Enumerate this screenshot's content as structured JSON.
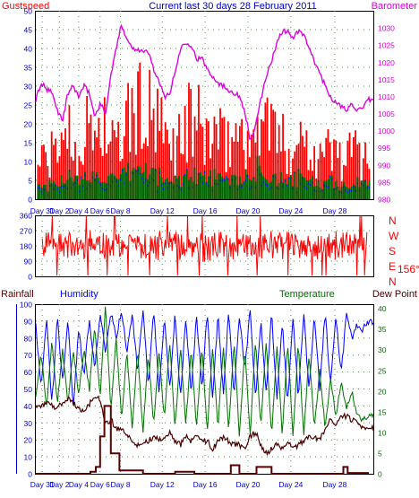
{
  "colors": {
    "gust": "#ff0000",
    "wind_dark": "#006400",
    "wind_blue": "#0000ff",
    "baro": "#e000e0",
    "dir": "#ff0000",
    "rain": "#5a0000",
    "humidity": "#0000ff",
    "temperature": "#007000",
    "dewpoint": "#4a0000",
    "axis_blue": "#0000cc",
    "grid": "#5a8a5a"
  },
  "chart_data": [
    {
      "type": "bar",
      "title": "Current last 30 days 28 February 2011",
      "left_label": "Gustspeed",
      "right_label": "Barometer",
      "x_ticks": [
        "Day 31",
        "Day 2",
        "Day 4",
        "Day 6",
        "Day 8",
        "Day 12",
        "Day 16",
        "Day 20",
        "Day 24",
        "Day 28"
      ],
      "ylim_left": [
        0,
        50
      ],
      "yticks_left": [
        "0",
        "5",
        "10",
        "15",
        "20",
        "25",
        "30",
        "35",
        "40",
        "45",
        "50"
      ],
      "ylim_right": [
        980,
        1035
      ],
      "yticks_right": [
        "980",
        "985",
        "990",
        "995",
        "1000",
        "1005",
        "1010",
        "1015",
        "1020",
        "1025",
        "1030"
      ],
      "x_range_days": [
        -1,
        30.5
      ],
      "gust_peak_days": [
        0.2,
        1.0,
        1.8,
        2.5,
        3.4,
        4.0,
        4.6,
        5.3,
        5.9,
        6.6,
        7.2,
        8.4,
        9.6,
        10.8,
        11.6,
        12.4,
        13.6,
        14.8,
        15.8,
        16.6,
        17.5,
        18.4,
        19.2,
        19.7,
        20.3,
        21.3,
        22.4,
        23.5,
        24.5,
        25.5,
        26.6,
        27.5,
        28.6,
        29.4
      ],
      "gust_peak_values": [
        17,
        20,
        34,
        22,
        24,
        31,
        28,
        33,
        25,
        20,
        30,
        38,
        35,
        27,
        21,
        26,
        34,
        27,
        28,
        22,
        27,
        30,
        17,
        39,
        35,
        29,
        20,
        27,
        24,
        18,
        22,
        17,
        20,
        19
      ],
      "baro_days": [
        -1,
        -0.5,
        0,
        0.5,
        1,
        1.5,
        2,
        2.5,
        3,
        3.5,
        4,
        4.5,
        5,
        5.5,
        6,
        6.5,
        7,
        7.5,
        8,
        8.5,
        9,
        9.5,
        10,
        10.5,
        11,
        11.5,
        12,
        12.5,
        13,
        13.5,
        14,
        14.5,
        15,
        15.5,
        16,
        16.5,
        17,
        17.5,
        18,
        18.5,
        19,
        19.5,
        20,
        20.5,
        21,
        21.5,
        22,
        22.5,
        23,
        23.5,
        24,
        24.5,
        25,
        25.5,
        26,
        26.5,
        27,
        27.5,
        28,
        28.5,
        29,
        29.5,
        30
      ],
      "baro_values": [
        1009,
        1014,
        1012,
        1011,
        1006,
        1003,
        1011,
        1013,
        1010,
        1013,
        1011,
        1004,
        1008,
        1005,
        1016,
        1024,
        1031,
        1027,
        1024,
        1024,
        1023,
        1023,
        1018,
        1014,
        1010,
        1011,
        1017,
        1024,
        1026,
        1025,
        1021,
        1021,
        1018,
        1016,
        1014,
        1013,
        1012,
        1011,
        1010,
        1006,
        997,
        1001,
        1009,
        1016,
        1020,
        1026,
        1029,
        1029,
        1027,
        1029,
        1028,
        1024,
        1020,
        1017,
        1013,
        1010,
        1008,
        1007,
        1006,
        1008,
        1006,
        1006,
        1009
      ]
    },
    {
      "type": "line",
      "series": [
        {
          "name": "Wind direction"
        }
      ],
      "right_labels": [
        "N",
        "W",
        "S",
        "E",
        "N"
      ],
      "current_reading": "156°",
      "ylim": [
        0,
        360
      ],
      "yticks": [
        "0",
        "90",
        "180",
        "270",
        "360"
      ],
      "typical_range": [
        90,
        270
      ]
    },
    {
      "type": "line",
      "labels": [
        "Rainfall",
        "Humidity",
        "Temperature",
        "Dew Point"
      ],
      "x_ticks": [
        "Day 31",
        "Day 2",
        "Day 4",
        "Day 6",
        "Day 8",
        "Day 12",
        "Day 16",
        "Day 20",
        "Day 24",
        "Day 28"
      ],
      "ylim_left": [
        0,
        100
      ],
      "yticks_left": [
        "0",
        "10",
        "20",
        "30",
        "40",
        "50",
        "60",
        "70",
        "80",
        "90",
        "100"
      ],
      "ylim_right": [
        0,
        41
      ],
      "yticks_right": [
        "0",
        "5",
        "10",
        "15",
        "20",
        "25",
        "30",
        "35",
        "40"
      ],
      "humidity_days": [
        -1,
        -0.5,
        0,
        0.5,
        1,
        1.5,
        2,
        2.5,
        3,
        3.5,
        4,
        4.5,
        5,
        5.5,
        6,
        6.5,
        7,
        7.5,
        8,
        8.5,
        9,
        9.5,
        10,
        10.5,
        11,
        11.5,
        12,
        12.5,
        13,
        13.5,
        14,
        14.5,
        15,
        15.5,
        16,
        16.5,
        17,
        17.5,
        18,
        18.5,
        19,
        19.5,
        20,
        20.5,
        21,
        21.5,
        22,
        22.5,
        23,
        23.5,
        24,
        24.5,
        25,
        25.5,
        26,
        26.5,
        27,
        27.5,
        28,
        28.5,
        29,
        29.5,
        30
      ],
      "humidity_values": [
        88,
        50,
        94,
        40,
        92,
        55,
        90,
        40,
        85,
        58,
        92,
        62,
        95,
        70,
        96,
        80,
        97,
        72,
        95,
        60,
        96,
        52,
        97,
        48,
        93,
        50,
        94,
        45,
        92,
        47,
        95,
        50,
        96,
        44,
        94,
        46,
        96,
        45,
        94,
        60,
        97,
        45,
        90,
        47,
        95,
        44,
        90,
        42,
        92,
        45,
        95,
        48,
        94,
        50,
        96,
        52,
        93,
        58,
        95,
        80,
        88,
        85,
        90
      ],
      "temperature_days": [
        -1,
        -0.5,
        0,
        0.5,
        1,
        1.5,
        2,
        2.5,
        3,
        3.5,
        4,
        4.5,
        5,
        5.5,
        6,
        6.5,
        7,
        7.5,
        8,
        8.5,
        9,
        9.5,
        10,
        10.5,
        11,
        11.5,
        12,
        12.5,
        13,
        13.5,
        14,
        14.5,
        15,
        15.5,
        16,
        16.5,
        17,
        17.5,
        18,
        18.5,
        19,
        19.5,
        20,
        20.5,
        21,
        21.5,
        22,
        22.5,
        23,
        23.5,
        24,
        24.5,
        25,
        25.5,
        26,
        26.5,
        27,
        27.5,
        28,
        28.5,
        29,
        29.5,
        30
      ],
      "temperature_values": [
        18,
        29,
        16,
        32,
        17,
        30,
        17,
        30,
        19,
        30,
        20,
        36,
        18,
        41,
        15,
        33,
        13,
        30,
        11,
        30,
        10,
        29,
        12,
        30,
        13,
        32,
        11,
        31,
        12,
        30,
        11,
        31,
        10,
        31,
        11,
        31,
        10,
        32,
        9,
        30,
        9,
        32,
        11,
        32,
        9,
        31,
        9,
        32,
        9,
        32,
        9,
        29,
        11,
        25,
        11,
        23,
        14,
        22,
        16,
        20,
        14,
        13,
        14
      ],
      "dewpoint_days": [
        -1,
        0,
        1,
        2,
        3,
        3.5,
        4,
        4.5,
        5,
        5.5,
        6,
        6.5,
        7,
        7.5,
        8,
        8.5,
        9,
        9.5,
        10,
        10.5,
        11,
        11.5,
        12,
        12.5,
        13,
        13.5,
        14,
        14.5,
        15,
        15.5,
        16,
        16.5,
        17,
        17.5,
        18,
        18.5,
        19,
        19.5,
        20,
        20.5,
        21,
        21.5,
        22,
        22.5,
        23,
        23.5,
        24,
        24.5,
        25,
        25.5,
        26,
        26.5,
        27,
        27.5,
        28,
        28.5,
        29,
        29.5,
        30
      ],
      "dewpoint_values": [
        16,
        17,
        16,
        18,
        16,
        15,
        17,
        19,
        18,
        12,
        13,
        11,
        11,
        9,
        8,
        7,
        7,
        8,
        9,
        8,
        9,
        10,
        8,
        7,
        9,
        8,
        9,
        8,
        8,
        6,
        8,
        9,
        8,
        7,
        7,
        6,
        9,
        10,
        7,
        5,
        6,
        7,
        6,
        8,
        6,
        7,
        8,
        9,
        9,
        8,
        11,
        13,
        12,
        14,
        14,
        13,
        13,
        11,
        11
      ],
      "rain_days": [
        -1,
        3.6,
        4.1,
        4.6,
        5.0,
        5.4,
        6.0,
        6.8,
        9.0,
        11.8,
        12.0,
        13.6,
        13.8,
        17.0,
        17.2,
        17.8,
        18.0,
        19.4,
        19.6,
        21.0,
        27.4,
        27.7,
        28.1,
        30
      ],
      "rain_values": [
        0,
        0,
        1.2,
        4,
        22,
        40,
        12,
        2,
        0,
        0,
        1.2,
        1.2,
        0,
        0,
        5,
        5,
        0,
        0,
        4,
        0,
        0,
        4,
        0.5,
        0
      ]
    }
  ]
}
